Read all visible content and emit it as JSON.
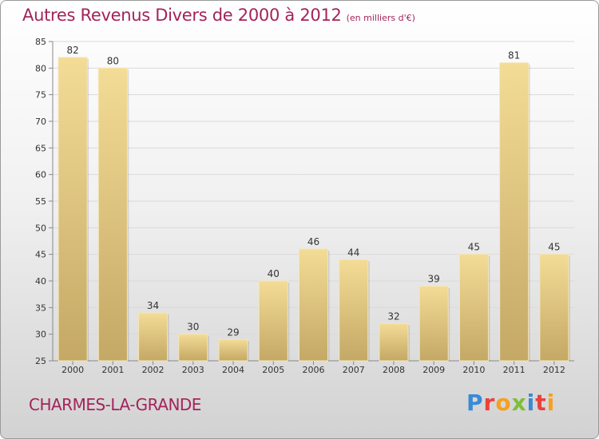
{
  "title": "Autres Revenus Divers de 2000 à 2012",
  "subtitle": "(en milliers d'€)",
  "city": "CHARMES-LA-GRANDE",
  "logo": {
    "text": "Proxiti",
    "colors": [
      "#3a8ad6",
      "#e8413c",
      "#f5a021",
      "#7cbf3a",
      "#3a8ad6",
      "#e8413c",
      "#f5a021"
    ]
  },
  "colors": {
    "accent": "#a3245a",
    "bar_light": "#f3dc96",
    "bar_dark": "#c4a865"
  },
  "chart_data": {
    "type": "bar",
    "categories": [
      "2000",
      "2001",
      "2002",
      "2003",
      "2004",
      "2005",
      "2006",
      "2007",
      "2008",
      "2009",
      "2010",
      "2011",
      "2012"
    ],
    "values": [
      82,
      80,
      34,
      30,
      29,
      40,
      46,
      44,
      32,
      39,
      45,
      81,
      45
    ],
    "ylim": [
      25,
      85
    ],
    "yticks": [
      25,
      30,
      35,
      40,
      45,
      50,
      55,
      60,
      65,
      70,
      75,
      80,
      85
    ],
    "grid": true,
    "legend": "none"
  }
}
